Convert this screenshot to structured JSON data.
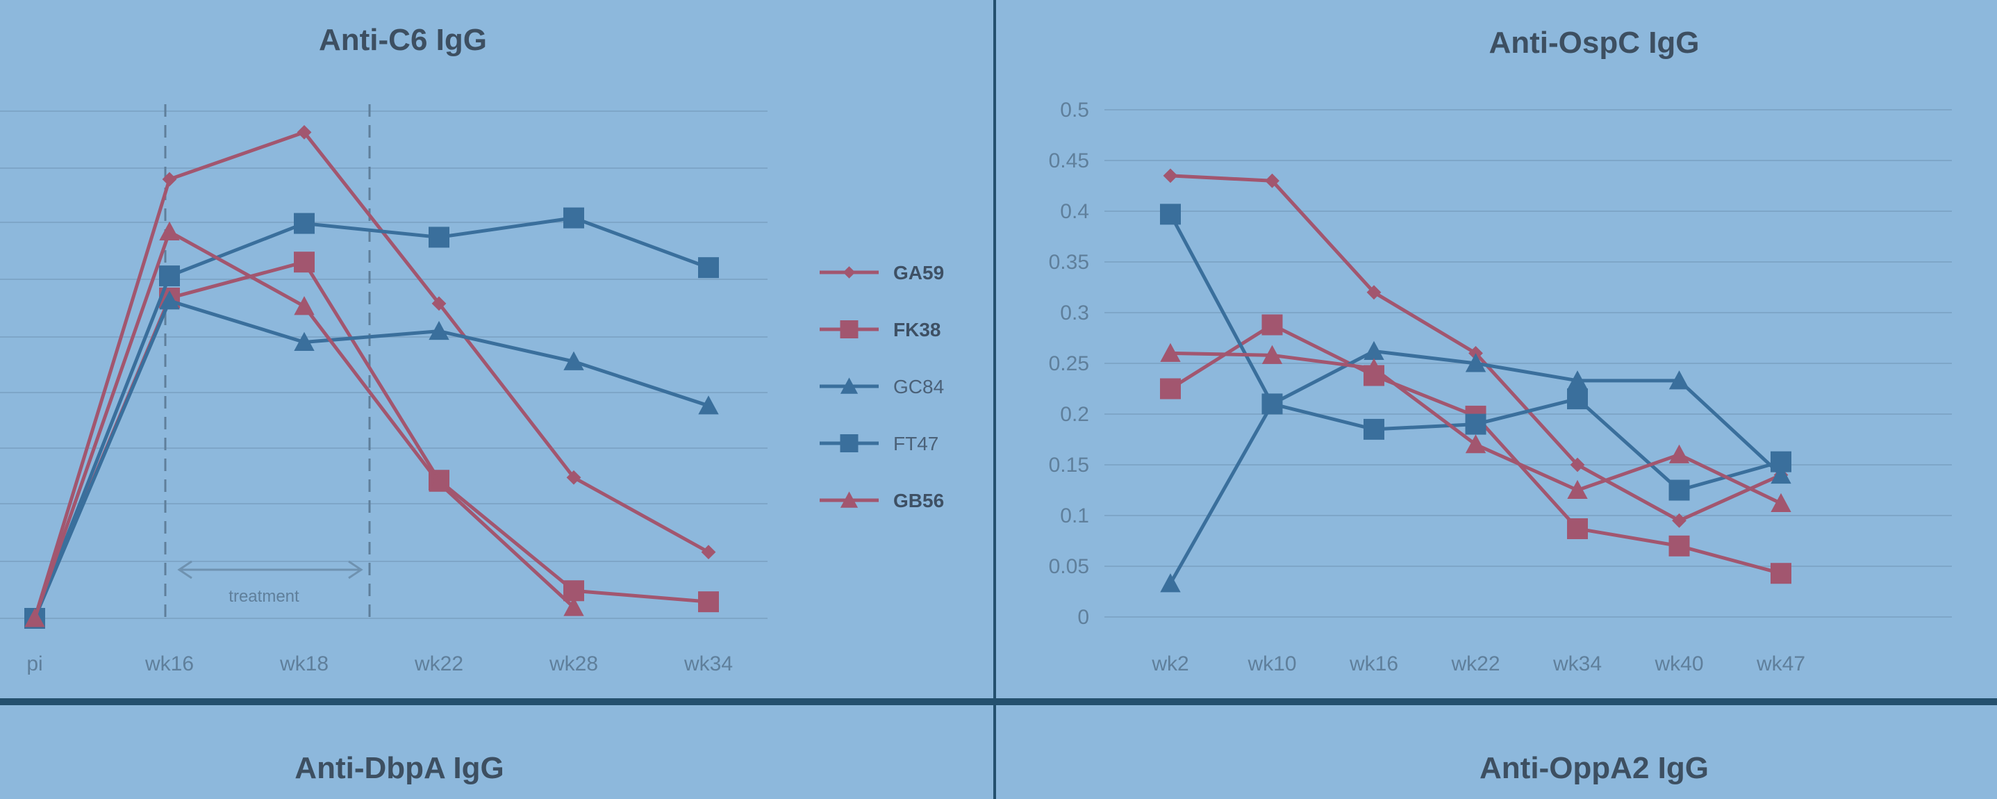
{
  "colors": {
    "background": "#8db8dc",
    "red": "#a2566f",
    "blue": "#3a6f9c",
    "grid": "#7ea6c8",
    "divider": "#24506e",
    "text": "#3d4f61",
    "tick": "#5f7f9b"
  },
  "panel_titles": {
    "bottom_left": "Anti-DbpA IgG",
    "bottom_right": "Anti-OppA2 IgG"
  },
  "legend": [
    {
      "label": "GA59",
      "marker": "diamond",
      "color": "red",
      "bold": true
    },
    {
      "label": "FK38",
      "marker": "square",
      "color": "red",
      "bold": true
    },
    {
      "label": "GC84",
      "marker": "triangle",
      "color": "blue",
      "bold": false
    },
    {
      "label": "FT47",
      "marker": "square",
      "color": "blue",
      "bold": false
    },
    {
      "label": "GB56",
      "marker": "triangle",
      "color": "red",
      "bold": true
    }
  ],
  "chart_data": [
    {
      "type": "line",
      "title": "Anti-C6 IgG",
      "categories": [
        "pi",
        "wk16",
        "wk18",
        "wk22",
        "wk28",
        "wk34"
      ],
      "grid": true,
      "annotations": [
        "treatment"
      ],
      "series": [
        {
          "name": "GA59",
          "color": "red",
          "marker": "diamond",
          "values": [
            0,
            0.795,
            0.88,
            0.57,
            0.255,
            0.12
          ]
        },
        {
          "name": "FK38",
          "color": "red",
          "marker": "square",
          "values": [
            0,
            0.58,
            0.645,
            0.25,
            0.05,
            0.03
          ]
        },
        {
          "name": "GC84",
          "color": "blue",
          "marker": "triangle",
          "values": [
            0,
            0.575,
            0.5,
            0.52,
            0.465,
            0.385
          ]
        },
        {
          "name": "FT47",
          "color": "blue",
          "marker": "square",
          "values": [
            0,
            0.62,
            0.715,
            0.69,
            0.725,
            0.635
          ]
        },
        {
          "name": "GB56",
          "color": "red",
          "marker": "triangle",
          "values": [
            0,
            0.7,
            0.565,
            0.245,
            0.02,
            null
          ]
        }
      ]
    },
    {
      "type": "line",
      "title": "Anti-OspC IgG",
      "categories": [
        "wk2",
        "wk10",
        "wk16",
        "wk22",
        "wk34",
        "wk40",
        "wk47"
      ],
      "yticks": [
        "0",
        "0.05",
        "0.1",
        "0.15",
        "0.2",
        "0.25",
        "0.3",
        "0.35",
        "0.4",
        "0.45",
        "0.5"
      ],
      "ylim": [
        0,
        0.5
      ],
      "grid": true,
      "series": [
        {
          "name": "GA59",
          "color": "red",
          "marker": "diamond",
          "values": [
            0.435,
            0.43,
            0.32,
            0.26,
            0.15,
            0.095,
            0.14
          ]
        },
        {
          "name": "FK38",
          "color": "red",
          "marker": "square",
          "values": [
            0.225,
            0.288,
            0.238,
            0.198,
            0.087,
            0.07,
            0.043
          ]
        },
        {
          "name": "GC84",
          "color": "blue",
          "marker": "triangle",
          "values": [
            0.033,
            0.21,
            0.262,
            0.25,
            0.233,
            0.233,
            0.14
          ]
        },
        {
          "name": "FT47",
          "color": "blue",
          "marker": "square",
          "values": [
            0.397,
            0.21,
            0.185,
            0.19,
            0.215,
            0.125,
            0.153
          ]
        },
        {
          "name": "GB56",
          "color": "red",
          "marker": "triangle",
          "values": [
            0.26,
            0.258,
            0.245,
            0.17,
            0.125,
            0.16,
            0.112
          ]
        }
      ]
    }
  ]
}
